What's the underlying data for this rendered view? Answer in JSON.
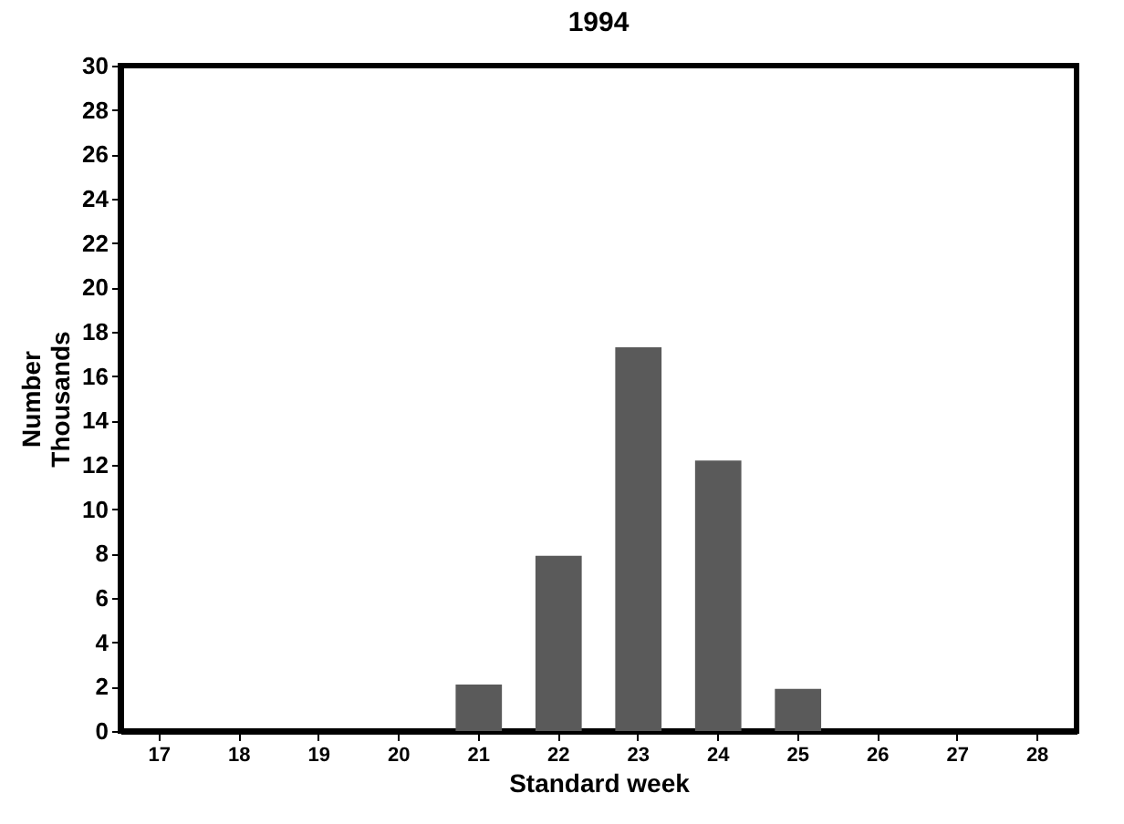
{
  "chart_data": {
    "type": "bar",
    "title": "1994",
    "xlabel": "Standard week",
    "ylabel": "Number Thousands",
    "categories": [
      "17",
      "18",
      "19",
      "20",
      "21",
      "22",
      "23",
      "24",
      "25",
      "26",
      "27",
      "28"
    ],
    "values": [
      0,
      0,
      0,
      0,
      2.1,
      7.9,
      17.3,
      12.2,
      1.9,
      0,
      0,
      0
    ],
    "color": "#5a5a5a",
    "ylim": [
      0,
      30
    ],
    "yticks": [
      0,
      2,
      4,
      6,
      8,
      10,
      12,
      14,
      16,
      18,
      20,
      22,
      24,
      26,
      28,
      30
    ],
    "grid": false
  }
}
